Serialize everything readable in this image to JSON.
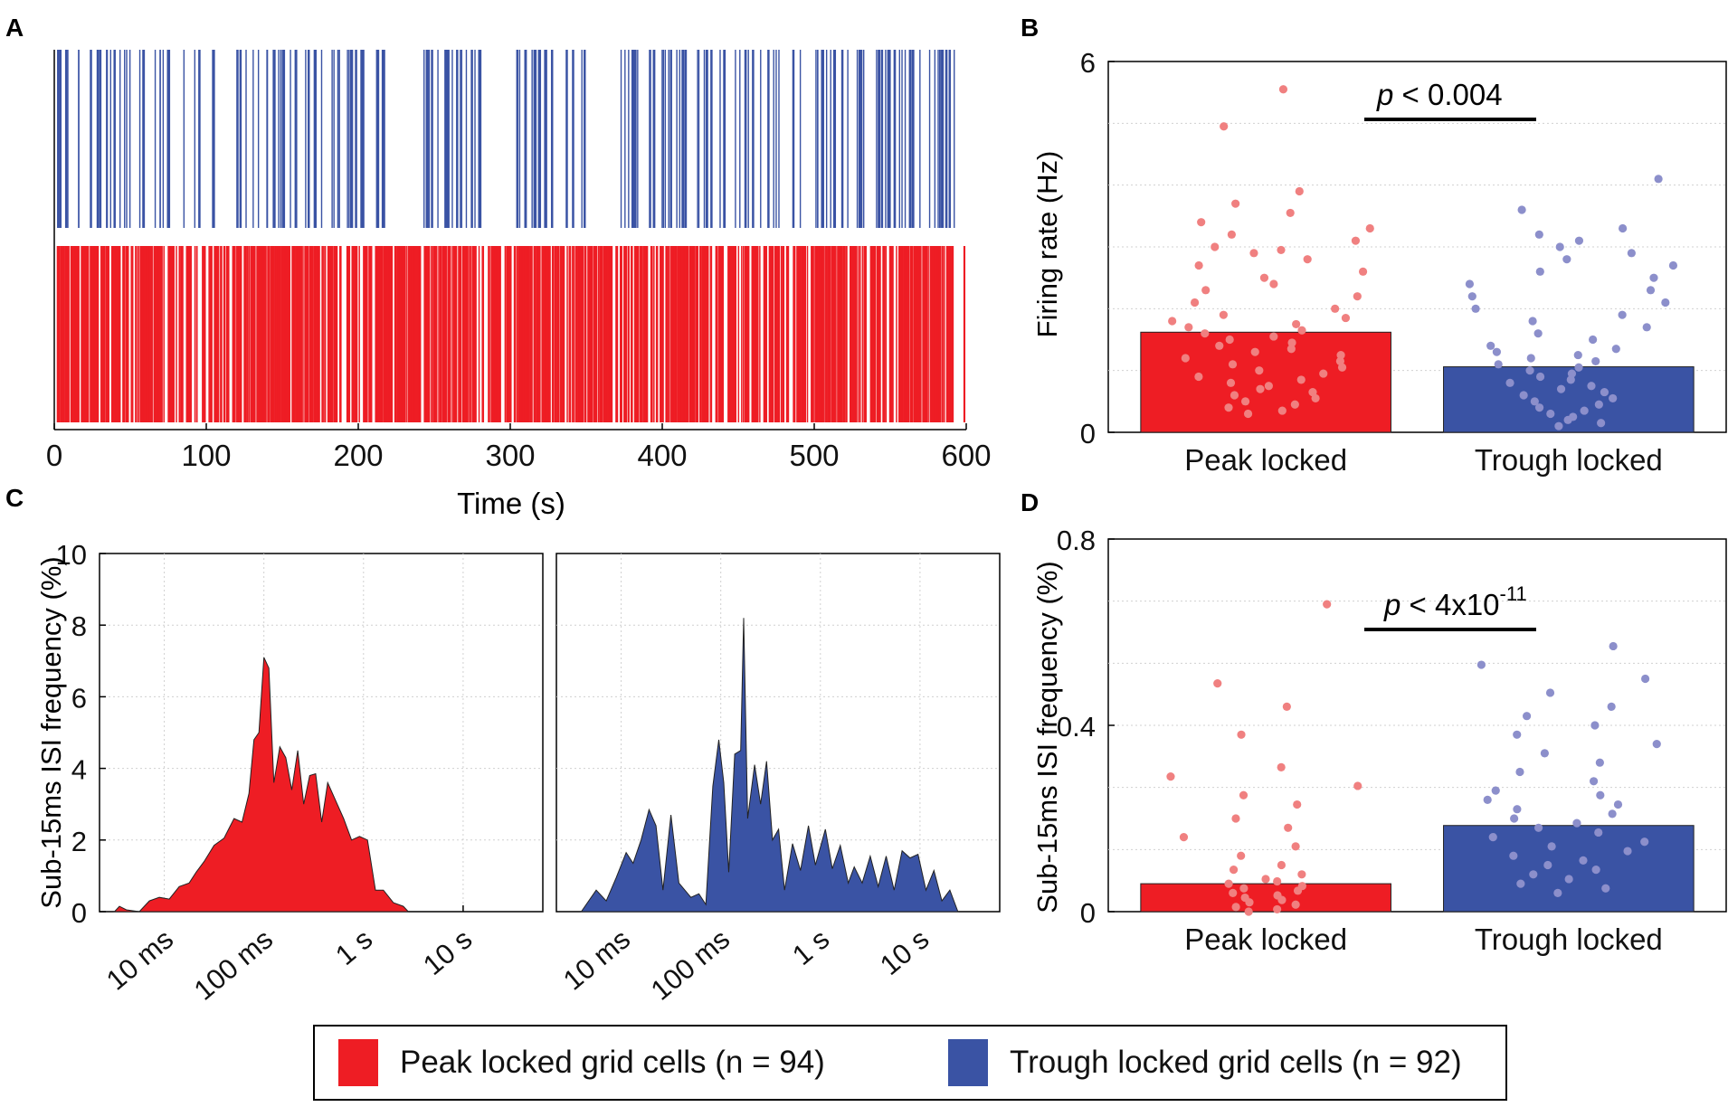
{
  "colors": {
    "peak": "#EE1D24",
    "trough": "#3A53A4",
    "peak_dot": "#F08080",
    "trough_dot": "#8C8FCB",
    "grid": "#D0D0D0"
  },
  "panel_labels": {
    "a": "A",
    "b": "B",
    "c": "C",
    "d": "D"
  },
  "chart_data": [
    {
      "id": "A",
      "type": "raster",
      "xlabel": "Time (s)",
      "xlim": [
        0,
        600
      ],
      "xticks": [
        "0",
        "100",
        "200",
        "300",
        "400",
        "500",
        "600"
      ],
      "series": [
        {
          "name": "Trough locked",
          "color": "#3A53A4",
          "n_spikes_est": 230
        },
        {
          "name": "Peak locked",
          "color": "#EE1D24",
          "n_spikes_est": 900
        }
      ]
    },
    {
      "id": "B",
      "type": "bar",
      "ylabel": "Firing rate (Hz)",
      "ylim": [
        0,
        6
      ],
      "yticks": [
        "0",
        "6"
      ],
      "categories": [
        "Peak locked",
        "Trough locked"
      ],
      "values": [
        1.62,
        1.06
      ],
      "annotation": {
        "prefix": "p",
        "text": " < 0.004"
      },
      "points": [
        [
          5.55,
          4.95,
          3.9,
          3.7,
          3.55,
          3.4,
          3.3,
          3.2,
          3.1,
          3.0,
          2.95,
          2.9,
          2.8,
          2.7,
          2.6,
          2.5,
          2.4,
          2.3,
          2.2,
          2.1,
          2.0,
          1.9,
          1.85,
          1.8,
          1.75,
          1.7,
          1.65,
          1.6,
          1.55,
          1.5,
          1.45,
          1.4,
          1.35,
          1.3,
          1.25,
          1.2,
          1.15,
          1.1,
          1.05,
          1.0,
          0.95,
          0.9,
          0.85,
          0.8,
          0.75,
          0.7,
          0.65,
          0.6,
          0.55,
          0.5,
          0.45,
          0.4,
          0.35,
          0.3
        ],
        [
          4.1,
          3.6,
          3.3,
          3.2,
          3.1,
          3.0,
          2.9,
          2.8,
          2.7,
          2.6,
          2.5,
          2.4,
          2.3,
          2.2,
          2.1,
          2.0,
          1.9,
          1.8,
          1.7,
          1.6,
          1.5,
          1.4,
          1.35,
          1.3,
          1.25,
          1.2,
          1.15,
          1.1,
          1.05,
          1.0,
          0.95,
          0.9,
          0.85,
          0.8,
          0.75,
          0.7,
          0.65,
          0.6,
          0.55,
          0.5,
          0.45,
          0.4,
          0.35,
          0.3,
          0.25,
          0.2,
          0.15,
          0.1
        ]
      ]
    },
    {
      "id": "C",
      "type": "area",
      "ylabel": "Sub-15ms ISI frequency (%)",
      "ylim": [
        0,
        10
      ],
      "yticks": [
        "0",
        "2",
        "4",
        "6",
        "8",
        "10"
      ],
      "xticks": [
        "10 ms",
        "100 ms",
        "1 s",
        "10 s"
      ],
      "xscale": "log10 seconds",
      "xlim_log": [
        -2.65,
        1.8
      ],
      "series": [
        {
          "name": "Peak locked",
          "color": "#EE1D24",
          "points": [
            [
              -2.5,
              0
            ],
            [
              -2.45,
              0.15
            ],
            [
              -2.38,
              0.05
            ],
            [
              -2.25,
              0
            ],
            [
              -2.15,
              0.3
            ],
            [
              -2.05,
              0.4
            ],
            [
              -1.95,
              0.35
            ],
            [
              -1.85,
              0.7
            ],
            [
              -1.75,
              0.8
            ],
            [
              -1.68,
              1.1
            ],
            [
              -1.6,
              1.4
            ],
            [
              -1.5,
              1.85
            ],
            [
              -1.4,
              2.05
            ],
            [
              -1.3,
              2.6
            ],
            [
              -1.22,
              2.5
            ],
            [
              -1.15,
              3.3
            ],
            [
              -1.1,
              4.8
            ],
            [
              -1.05,
              5.0
            ],
            [
              -1.0,
              7.1
            ],
            [
              -0.95,
              6.8
            ],
            [
              -0.9,
              3.6
            ],
            [
              -0.84,
              4.6
            ],
            [
              -0.78,
              4.3
            ],
            [
              -0.72,
              3.4
            ],
            [
              -0.66,
              4.5
            ],
            [
              -0.6,
              3.0
            ],
            [
              -0.54,
              3.8
            ],
            [
              -0.48,
              3.85
            ],
            [
              -0.42,
              2.5
            ],
            [
              -0.36,
              3.6
            ],
            [
              -0.28,
              3.1
            ],
            [
              -0.2,
              2.6
            ],
            [
              -0.12,
              2.0
            ],
            [
              -0.04,
              2.1
            ],
            [
              0.04,
              2.0
            ],
            [
              0.12,
              0.6
            ],
            [
              0.2,
              0.6
            ],
            [
              0.3,
              0.25
            ],
            [
              0.4,
              0.15
            ],
            [
              0.45,
              0
            ]
          ]
        },
        {
          "name": "Trough locked",
          "color": "#3A53A4",
          "points": [
            [
              -2.4,
              0
            ],
            [
              -2.25,
              0.6
            ],
            [
              -2.15,
              0.3
            ],
            [
              -2.05,
              0.95
            ],
            [
              -1.95,
              1.65
            ],
            [
              -1.88,
              1.35
            ],
            [
              -1.8,
              2.0
            ],
            [
              -1.72,
              2.85
            ],
            [
              -1.65,
              2.4
            ],
            [
              -1.58,
              0.6
            ],
            [
              -1.5,
              2.7
            ],
            [
              -1.42,
              0.8
            ],
            [
              -1.3,
              0.4
            ],
            [
              -1.22,
              0.5
            ],
            [
              -1.15,
              0.2
            ],
            [
              -1.08,
              3.5
            ],
            [
              -1.02,
              4.8
            ],
            [
              -0.97,
              3.6
            ],
            [
              -0.92,
              1.1
            ],
            [
              -0.86,
              4.4
            ],
            [
              -0.8,
              4.5
            ],
            [
              -0.77,
              8.2
            ],
            [
              -0.73,
              2.6
            ],
            [
              -0.66,
              4.1
            ],
            [
              -0.6,
              3.0
            ],
            [
              -0.54,
              4.2
            ],
            [
              -0.48,
              2.0
            ],
            [
              -0.42,
              2.3
            ],
            [
              -0.36,
              0.6
            ],
            [
              -0.28,
              1.9
            ],
            [
              -0.2,
              1.15
            ],
            [
              -0.12,
              2.4
            ],
            [
              -0.05,
              1.3
            ],
            [
              0.05,
              2.3
            ],
            [
              0.12,
              1.2
            ],
            [
              0.2,
              1.85
            ],
            [
              0.28,
              0.8
            ],
            [
              0.34,
              1.25
            ],
            [
              0.42,
              0.8
            ],
            [
              0.5,
              1.55
            ],
            [
              0.58,
              0.7
            ],
            [
              0.66,
              1.55
            ],
            [
              0.74,
              0.6
            ],
            [
              0.82,
              1.7
            ],
            [
              0.9,
              1.5
            ],
            [
              0.98,
              1.6
            ],
            [
              1.06,
              0.6
            ],
            [
              1.14,
              1.15
            ],
            [
              1.22,
              0.3
            ],
            [
              1.3,
              0.6
            ],
            [
              1.38,
              0
            ]
          ]
        }
      ]
    },
    {
      "id": "D",
      "type": "bar",
      "ylabel": "Sub-15ms ISI frequency (%)",
      "ylim": [
        0,
        0.8
      ],
      "yticks": [
        "0",
        "0.4",
        "0.8"
      ],
      "categories": [
        "Peak locked",
        "Trough locked"
      ],
      "values": [
        0.06,
        0.185
      ],
      "annotation": {
        "prefix": "p",
        "text": " < 4x10",
        "superscript": "-11"
      },
      "points": [
        [
          0.66,
          0.49,
          0.44,
          0.38,
          0.31,
          0.29,
          0.27,
          0.25,
          0.23,
          0.2,
          0.18,
          0.16,
          0.14,
          0.12,
          0.1,
          0.09,
          0.08,
          0.07,
          0.065,
          0.06,
          0.055,
          0.05,
          0.045,
          0.04,
          0.035,
          0.03,
          0.025,
          0.02,
          0.015,
          0.01,
          0.005,
          0.0
        ],
        [
          0.57,
          0.53,
          0.5,
          0.47,
          0.44,
          0.42,
          0.4,
          0.38,
          0.36,
          0.34,
          0.32,
          0.3,
          0.28,
          0.26,
          0.25,
          0.24,
          0.23,
          0.22,
          0.21,
          0.2,
          0.19,
          0.18,
          0.17,
          0.16,
          0.15,
          0.14,
          0.13,
          0.12,
          0.11,
          0.1,
          0.09,
          0.08,
          0.07,
          0.06,
          0.05,
          0.04
        ]
      ]
    }
  ],
  "legend": [
    {
      "label": "Peak locked grid cells (n = 94)",
      "color": "#EE1D24"
    },
    {
      "label": "Trough locked grid cells (n = 92)",
      "color": "#3A53A4"
    }
  ]
}
